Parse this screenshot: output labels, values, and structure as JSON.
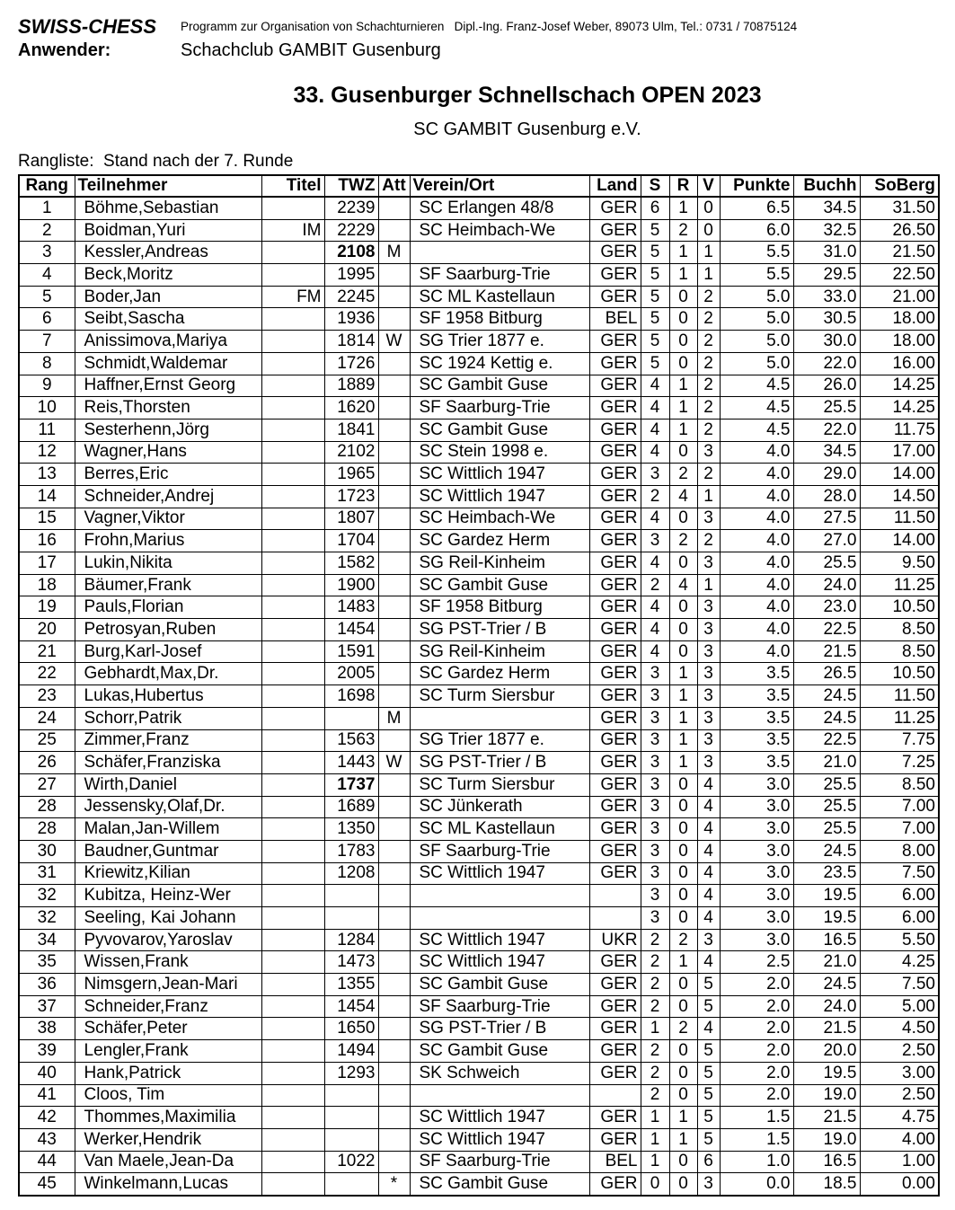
{
  "header": {
    "program": "SWISS-CHESS",
    "program_info": "Programm zur Organisation von Schachturnieren   Dipl.-Ing. Franz-Josef Weber, 89073 Ulm, Tel.: 0731 / 70875124",
    "user_label": "Anwender:",
    "user": "Schachclub GAMBIT Gusenburg"
  },
  "title": "33. Gusenburger Schnellschach OPEN 2023",
  "subtitle": "SC GAMBIT Gusenburg e.V.",
  "caption": "Rangliste:  Stand nach der 7. Runde",
  "table": {
    "columns": [
      "Rang",
      "Teilnehmer",
      "Titel",
      "TWZ",
      "Att",
      "Verein/Ort",
      "Land",
      "S",
      "R",
      "V",
      "Punkte",
      "Buchh",
      "SoBerg"
    ],
    "align": [
      "center",
      "left",
      "right",
      "right",
      "center",
      "left",
      "right",
      "center",
      "center",
      "center",
      "right",
      "right",
      "right"
    ],
    "rows": [
      [
        "1",
        "Böhme,Sebastian",
        null,
        "2239",
        null,
        "SC Erlangen 48/8",
        "GER",
        "6",
        "1",
        "0",
        "6.5",
        "34.5",
        "31.50"
      ],
      [
        "2",
        "Boidman,Yuri",
        "IM",
        "2229",
        null,
        "SC Heimbach-We",
        "GER",
        "5",
        "2",
        "0",
        "6.0",
        "32.5",
        "26.50"
      ],
      [
        "3",
        "Kessler,Andreas",
        null,
        {
          "text": "2108",
          "bold": true
        },
        "M",
        null,
        "GER",
        "5",
        "1",
        "1",
        "5.5",
        "31.0",
        "21.50"
      ],
      [
        "4",
        "Beck,Moritz",
        null,
        "1995",
        null,
        "SF Saarburg-Trie",
        "GER",
        "5",
        "1",
        "1",
        "5.5",
        "29.5",
        "22.50"
      ],
      [
        "5",
        "Boder,Jan",
        "FM",
        "2245",
        null,
        "SC ML Kastellaun",
        "GER",
        "5",
        "0",
        "2",
        "5.0",
        "33.0",
        "21.00"
      ],
      [
        "6",
        "Seibt,Sascha",
        null,
        "1936",
        null,
        "SF 1958 Bitburg",
        "BEL",
        "5",
        "0",
        "2",
        "5.0",
        "30.5",
        "18.00"
      ],
      [
        "7",
        "Anissimova,Mariya",
        null,
        "1814",
        "W",
        "SG Trier 1877 e.",
        "GER",
        "5",
        "0",
        "2",
        "5.0",
        "30.0",
        "18.00"
      ],
      [
        "8",
        "Schmidt,Waldemar",
        null,
        "1726",
        null,
        "SC 1924 Kettig e.",
        "GER",
        "5",
        "0",
        "2",
        "5.0",
        "22.0",
        "16.00"
      ],
      [
        "9",
        "Haffner,Ernst Georg",
        null,
        "1889",
        null,
        "SC Gambit Guse",
        "GER",
        "4",
        "1",
        "2",
        "4.5",
        "26.0",
        "14.25"
      ],
      [
        "10",
        "Reis,Thorsten",
        null,
        "1620",
        null,
        "SF Saarburg-Trie",
        "GER",
        "4",
        "1",
        "2",
        "4.5",
        "25.5",
        "14.25"
      ],
      [
        "11",
        "Sesterhenn,Jörg",
        null,
        "1841",
        null,
        "SC Gambit Guse",
        "GER",
        "4",
        "1",
        "2",
        "4.5",
        "22.0",
        "11.75"
      ],
      [
        "12",
        "Wagner,Hans",
        null,
        "2102",
        null,
        "SC Stein 1998 e.",
        "GER",
        "4",
        "0",
        "3",
        "4.0",
        "34.5",
        "17.00"
      ],
      [
        "13",
        "Berres,Eric",
        null,
        "1965",
        null,
        "SC Wittlich 1947",
        "GER",
        "3",
        "2",
        "2",
        "4.0",
        "29.0",
        "14.00"
      ],
      [
        "14",
        "Schneider,Andrej",
        null,
        "1723",
        null,
        "SC Wittlich 1947",
        "GER",
        "2",
        "4",
        "1",
        "4.0",
        "28.0",
        "14.50"
      ],
      [
        "15",
        "Vagner,Viktor",
        null,
        "1807",
        null,
        "SC Heimbach-We",
        "GER",
        "4",
        "0",
        "3",
        "4.0",
        "27.5",
        "11.50"
      ],
      [
        "16",
        "Frohn,Marius",
        null,
        "1704",
        null,
        "SC Gardez Herm",
        "GER",
        "3",
        "2",
        "2",
        "4.0",
        "27.0",
        "14.00"
      ],
      [
        "17",
        "Lukin,Nikita",
        null,
        "1582",
        null,
        "SG Reil-Kinheim",
        "GER",
        "4",
        "0",
        "3",
        "4.0",
        "25.5",
        "9.50"
      ],
      [
        "18",
        "Bäumer,Frank",
        null,
        "1900",
        null,
        "SC Gambit Guse",
        "GER",
        "2",
        "4",
        "1",
        "4.0",
        "24.0",
        "11.25"
      ],
      [
        "19",
        "Pauls,Florian",
        null,
        "1483",
        null,
        "SF 1958 Bitburg",
        "GER",
        "4",
        "0",
        "3",
        "4.0",
        "23.0",
        "10.50"
      ],
      [
        "20",
        "Petrosyan,Ruben",
        null,
        "1454",
        null,
        "SG PST-Trier / B",
        "GER",
        "4",
        "0",
        "3",
        "4.0",
        "22.5",
        "8.50"
      ],
      [
        "21",
        "Burg,Karl-Josef",
        null,
        "1591",
        null,
        "SG Reil-Kinheim",
        "GER",
        "4",
        "0",
        "3",
        "4.0",
        "21.5",
        "8.50"
      ],
      [
        "22",
        "Gebhardt,Max,Dr.",
        null,
        "2005",
        null,
        "SC Gardez Herm",
        "GER",
        "3",
        "1",
        "3",
        "3.5",
        "26.5",
        "10.50"
      ],
      [
        "23",
        "Lukas,Hubertus",
        null,
        "1698",
        null,
        "SC Turm Siersbur",
        "GER",
        "3",
        "1",
        "3",
        "3.5",
        "24.5",
        "11.50"
      ],
      [
        "24",
        "Schorr,Patrik",
        null,
        null,
        "M",
        null,
        "GER",
        "3",
        "1",
        "3",
        "3.5",
        "24.5",
        "11.25"
      ],
      [
        "25",
        "Zimmer,Franz",
        null,
        "1563",
        null,
        "SG Trier 1877 e.",
        "GER",
        "3",
        "1",
        "3",
        "3.5",
        "22.5",
        "7.75"
      ],
      [
        "26",
        "Schäfer,Franziska",
        null,
        "1443",
        "W",
        "SG PST-Trier / B",
        "GER",
        "3",
        "1",
        "3",
        "3.5",
        "21.0",
        "7.25"
      ],
      [
        "27",
        "Wirth,Daniel",
        null,
        {
          "text": "1737",
          "bold": true
        },
        null,
        "SC Turm Siersbur",
        "GER",
        "3",
        "0",
        "4",
        "3.0",
        "25.5",
        "8.50"
      ],
      [
        "28",
        "Jessensky,Olaf,Dr.",
        null,
        "1689",
        null,
        "SC Jünkerath",
        "GER",
        "3",
        "0",
        "4",
        "3.0",
        "25.5",
        "7.00"
      ],
      [
        "28",
        "Malan,Jan-Willem",
        null,
        "1350",
        null,
        "SC ML Kastellaun",
        "GER",
        "3",
        "0",
        "4",
        "3.0",
        "25.5",
        "7.00"
      ],
      [
        "30",
        "Baudner,Guntmar",
        null,
        "1783",
        null,
        "SF Saarburg-Trie",
        "GER",
        "3",
        "0",
        "4",
        "3.0",
        "24.5",
        "8.00"
      ],
      [
        "31",
        "Kriewitz,Kilian",
        null,
        "1208",
        null,
        "SC Wittlich 1947",
        "GER",
        "3",
        "0",
        "4",
        "3.0",
        "23.5",
        "7.50"
      ],
      [
        "32",
        "Kubitza, Heinz-Wer",
        null,
        null,
        null,
        null,
        null,
        "3",
        "0",
        "4",
        "3.0",
        "19.5",
        "6.00"
      ],
      [
        "32",
        "Seeling, Kai Johann",
        null,
        null,
        null,
        null,
        null,
        "3",
        "0",
        "4",
        "3.0",
        "19.5",
        "6.00"
      ],
      [
        "34",
        "Pyvovarov,Yaroslav",
        null,
        "1284",
        null,
        "SC Wittlich 1947",
        "UKR",
        "2",
        "2",
        "3",
        "3.0",
        "16.5",
        "5.50"
      ],
      [
        "35",
        "Wissen,Frank",
        null,
        "1473",
        null,
        "SC Wittlich 1947",
        "GER",
        "2",
        "1",
        "4",
        "2.5",
        "21.0",
        "4.25"
      ],
      [
        "36",
        "Nimsgern,Jean-Mari",
        null,
        "1355",
        null,
        "SC Gambit Guse",
        "GER",
        "2",
        "0",
        "5",
        "2.0",
        "24.5",
        "7.50"
      ],
      [
        "37",
        "Schneider,Franz",
        null,
        "1454",
        null,
        "SF Saarburg-Trie",
        "GER",
        "2",
        "0",
        "5",
        "2.0",
        "24.0",
        "5.00"
      ],
      [
        "38",
        "Schäfer,Peter",
        null,
        "1650",
        null,
        "SG PST-Trier / B",
        "GER",
        "1",
        "2",
        "4",
        "2.0",
        "21.5",
        "4.50"
      ],
      [
        "39",
        "Lengler,Frank",
        null,
        "1494",
        null,
        "SC Gambit Guse",
        "GER",
        "2",
        "0",
        "5",
        "2.0",
        "20.0",
        "2.50"
      ],
      [
        "40",
        "Hank,Patrick",
        null,
        "1293",
        null,
        "SK Schweich",
        "GER",
        "2",
        "0",
        "5",
        "2.0",
        "19.5",
        "3.00"
      ],
      [
        "41",
        "Cloos, Tim",
        null,
        null,
        null,
        null,
        null,
        "2",
        "0",
        "5",
        "2.0",
        "19.0",
        "2.50"
      ],
      [
        "42",
        "Thommes,Maximilia",
        null,
        null,
        null,
        "SC Wittlich 1947",
        "GER",
        "1",
        "1",
        "5",
        "1.5",
        "21.5",
        "4.75"
      ],
      [
        "43",
        "Werker,Hendrik",
        null,
        null,
        null,
        "SC Wittlich 1947",
        "GER",
        "1",
        "1",
        "5",
        "1.5",
        "19.0",
        "4.00"
      ],
      [
        "44",
        "Van Maele,Jean-Da",
        null,
        "1022",
        null,
        "SF Saarburg-Trie",
        "BEL",
        "1",
        "0",
        "6",
        "1.0",
        "16.5",
        "1.00"
      ],
      [
        "45",
        "Winkelmann,Lucas",
        null,
        null,
        "*",
        "SC Gambit Guse",
        "GER",
        "0",
        "0",
        "3",
        "0.0",
        "18.5",
        "0.00"
      ]
    ]
  }
}
